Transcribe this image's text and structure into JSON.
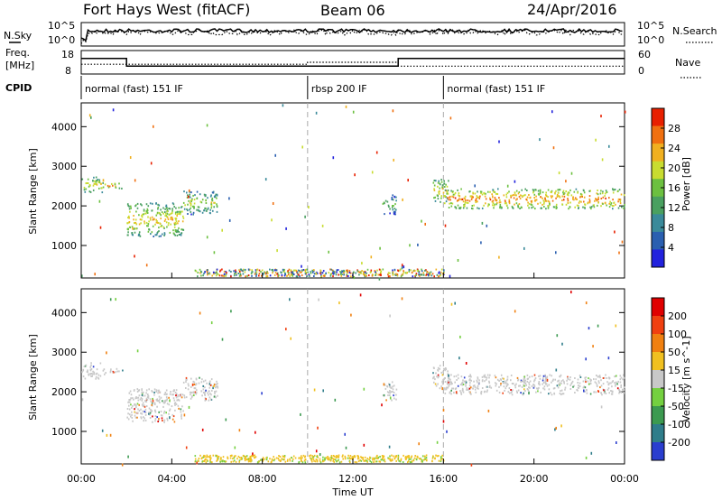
{
  "header": {
    "station": "Fort Hays West (fitACF)",
    "beam": "Beam 06",
    "date": "24/Apr/2016"
  },
  "chart_data": [
    {
      "type": "line",
      "name": "noise",
      "left_label": "N.Sky",
      "right_label": "N.Search",
      "left_ticks": [
        "10^5",
        "10^0"
      ],
      "right_ticks": [
        "10^5",
        "10^0"
      ]
    },
    {
      "type": "line",
      "name": "frequency",
      "left_label": "Freq.",
      "left_units": "[MHz]",
      "right_label": "Nave",
      "left_ticks": [
        "18",
        "8"
      ],
      "right_ticks": [
        "60",
        "0"
      ],
      "freq_segments": [
        [
          0,
          2,
          14
        ],
        [
          2,
          14,
          10
        ],
        [
          14,
          24,
          14
        ]
      ],
      "nave_segments": [
        [
          0,
          2,
          11
        ],
        [
          2,
          10,
          11
        ],
        [
          10,
          14,
          12
        ],
        [
          14,
          24,
          10
        ]
      ]
    },
    {
      "type": "table",
      "name": "cpid",
      "label": "CPID",
      "segments": [
        {
          "start": 0,
          "end": 10,
          "text": "normal (fast) 151 IF"
        },
        {
          "start": 10,
          "end": 16,
          "text": "rbsp 200 IF"
        },
        {
          "start": 16,
          "end": 24,
          "text": "normal (fast) 151 IF"
        }
      ]
    },
    {
      "type": "heatmap",
      "name": "power",
      "ylabel": "Slant Range [km]",
      "yticks": [
        1000,
        2000,
        3000,
        4000
      ],
      "ylim": [
        180,
        4600
      ],
      "colorbar_label": "Power [dB]",
      "colorbar_ticks": [
        "28",
        "24",
        "20",
        "16",
        "12",
        "8",
        "4"
      ],
      "colors": [
        "#2222dd",
        "#2a5fb0",
        "#3a8a9a",
        "#4aa060",
        "#6cc040",
        "#c8dc30",
        "#f0b020",
        "#f07010",
        "#e82000"
      ],
      "bands": [
        {
          "t0": 0.0,
          "t1": 0.9,
          "r0": 2350,
          "r1": 2750,
          "level": 6
        },
        {
          "t0": 0.9,
          "t1": 1.8,
          "r0": 2450,
          "r1": 2600,
          "level": 7
        },
        {
          "t0": 2.0,
          "t1": 4.5,
          "r0": 1250,
          "r1": 2100,
          "level": 6
        },
        {
          "t0": 4.5,
          "t1": 6.0,
          "r0": 1800,
          "r1": 2400,
          "level": 5
        },
        {
          "t0": 13.3,
          "t1": 13.9,
          "r0": 1800,
          "r1": 2300,
          "level": 4
        },
        {
          "t0": 15.5,
          "t1": 16.2,
          "r0": 2100,
          "r1": 2700,
          "level": 6
        },
        {
          "t0": 16.0,
          "t1": 24.0,
          "r0": 1950,
          "r1": 2450,
          "level": 7
        }
      ]
    },
    {
      "type": "heatmap",
      "name": "velocity",
      "ylabel": "Slant Range [km]",
      "yticks": [
        1000,
        2000,
        3000,
        4000
      ],
      "ylim": [
        180,
        4600
      ],
      "xlabel": "Time UT",
      "xticks": [
        "00:00",
        "04:00",
        "08:00",
        "12:00",
        "16:00",
        "20:00",
        "00:00"
      ],
      "xlim": [
        0,
        24
      ],
      "colorbar_label": "Velocity [m s^-1]",
      "colorbar_ticks": [
        "200",
        "100",
        "50",
        "15",
        "-15",
        "-50",
        "-100",
        "-200"
      ],
      "colors": [
        "#2a3ecf",
        "#2f7d8a",
        "#3c9a50",
        "#74d040",
        "#c8c8c8",
        "#f0c020",
        "#f08010",
        "#f04010",
        "#e00000"
      ]
    }
  ]
}
